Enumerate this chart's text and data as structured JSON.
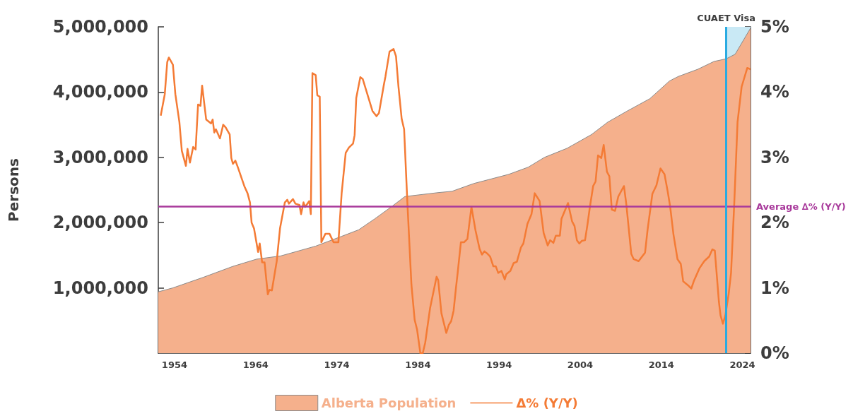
{
  "chart_data": {
    "type": "line",
    "ylabel": "Persons",
    "xlim": [
      1952,
      2025
    ],
    "xticks": [
      1954,
      1964,
      1974,
      1984,
      1994,
      2004,
      2014,
      2024
    ],
    "ylim": [
      0,
      5000000
    ],
    "yticks": [
      {
        "value": 1000000,
        "label": "1,000,000"
      },
      {
        "value": 2000000,
        "label": "2,000,000"
      },
      {
        "value": 3000000,
        "label": "3,000,000"
      },
      {
        "value": 4000000,
        "label": "4,000,000"
      },
      {
        "value": 5000000,
        "label": "5,000,000"
      }
    ],
    "y2lim": [
      0,
      5
    ],
    "y2ticks": [
      {
        "value": 0,
        "label": "0%"
      },
      {
        "value": 1,
        "label": "1%"
      },
      {
        "value": 2,
        "label": "2%"
      },
      {
        "value": 3,
        "label": "3%"
      },
      {
        "value": 4,
        "label": "4%"
      },
      {
        "value": 5,
        "label": "5%"
      }
    ],
    "grid": false,
    "legend": "bottom",
    "series": [
      {
        "name": "Alberta Population",
        "type": "area",
        "color": "#f5b08c",
        "x": [
          1952.0,
          1953.8,
          1957.5,
          1961.2,
          1964.1,
          1967.1,
          1971.4,
          1974.6,
          1976.7,
          1978.7,
          1980.7,
          1982.4,
          1986.5,
          1988.2,
          1990.9,
          1995.2,
          1997.6,
          1999.6,
          2002.4,
          2005.4,
          2007.4,
          2009.8,
          2012.6,
          2015.0,
          2016.1,
          2018.5,
          2020.5,
          2022.0,
          2023.1,
          2025.0
        ],
        "values": [
          940000,
          1000000,
          1160000,
          1330000,
          1440000,
          1490000,
          1640000,
          1790000,
          1890000,
          2060000,
          2240000,
          2400000,
          2460000,
          2480000,
          2600000,
          2740000,
          2850000,
          3000000,
          3140000,
          3350000,
          3540000,
          3710000,
          3900000,
          4170000,
          4240000,
          4350000,
          4470000,
          4510000,
          4580000,
          4980000
        ]
      },
      {
        "name": "Δ% (Y/Y)",
        "color": "#f47b35",
        "axis": "y2",
        "x": [
          1952.3,
          1952.8,
          1953.1,
          1953.3,
          1953.8,
          1954.1,
          1954.6,
          1954.9,
          1955.4,
          1955.6,
          1955.9,
          1956.3,
          1956.6,
          1956.9,
          1957.2,
          1957.4,
          1957.9,
          1958.5,
          1958.7,
          1958.9,
          1959.1,
          1959.6,
          1960.0,
          1960.3,
          1960.8,
          1961.0,
          1961.2,
          1961.5,
          1961.8,
          1962.3,
          1962.6,
          1963.0,
          1963.3,
          1963.5,
          1963.8,
          1964.3,
          1964.5,
          1964.8,
          1965.1,
          1965.5,
          1965.7,
          1966.0,
          1966.6,
          1967.0,
          1967.6,
          1967.9,
          1968.1,
          1968.6,
          1968.9,
          1969.4,
          1969.6,
          1969.9,
          1970.1,
          1970.6,
          1970.8,
          1971.0,
          1971.4,
          1971.6,
          1971.9,
          1972.1,
          1972.6,
          1973.1,
          1973.6,
          1974.2,
          1974.6,
          1975.1,
          1975.5,
          1976.0,
          1976.2,
          1976.4,
          1976.9,
          1977.2,
          1978.4,
          1978.9,
          1979.2,
          1979.8,
          1980.0,
          1980.5,
          1981.0,
          1981.3,
          1981.6,
          1982.0,
          1982.3,
          1982.7,
          1983.2,
          1983.6,
          1983.9,
          1984.3,
          1984.6,
          1984.9,
          1985.5,
          1986.3,
          1986.5,
          1986.9,
          1987.5,
          1987.8,
          1988.1,
          1988.4,
          1988.7,
          1988.9,
          1989.3,
          1989.7,
          1990.1,
          1990.6,
          1991.1,
          1991.6,
          1991.9,
          1992.2,
          1992.6,
          1992.9,
          1993.3,
          1993.6,
          1993.9,
          1994.3,
          1994.7,
          1994.9,
          1995.4,
          1995.8,
          1996.2,
          1996.7,
          1997.0,
          1997.5,
          1998.0,
          1998.4,
          1999.0,
          1999.5,
          2000.0,
          2000.3,
          2000.7,
          2001.0,
          2001.5,
          2001.7,
          2002.5,
          2003.0,
          2003.3,
          2003.6,
          2003.9,
          2004.2,
          2004.6,
          2004.9,
          2005.2,
          2005.6,
          2005.9,
          2006.2,
          2006.6,
          2006.9,
          2007.3,
          2007.6,
          2007.9,
          2008.3,
          2008.7,
          2009.4,
          2009.7,
          2010.3,
          2010.6,
          2011.2,
          2012.0,
          2012.3,
          2012.9,
          2013.4,
          2013.9,
          2014.4,
          2014.8,
          2015.1,
          2015.5,
          2016.0,
          2016.4,
          2016.7,
          2017.3,
          2017.7,
          2018.0,
          2018.7,
          2019.3,
          2019.9,
          2020.3,
          2020.6,
          2021.1,
          2021.3,
          2021.6,
          2021.9,
          2022.3,
          2022.6,
          2023.0,
          2023.4,
          2023.9,
          2024.6,
          2025.0
        ],
        "values": [
          3.64,
          3.97,
          4.46,
          4.53,
          4.42,
          3.97,
          3.54,
          3.1,
          2.87,
          3.13,
          2.92,
          3.16,
          3.12,
          3.81,
          3.79,
          4.1,
          3.58,
          3.52,
          3.58,
          3.38,
          3.43,
          3.29,
          3.5,
          3.46,
          3.35,
          2.99,
          2.9,
          2.95,
          2.85,
          2.67,
          2.56,
          2.45,
          2.31,
          2.0,
          1.91,
          1.55,
          1.68,
          1.39,
          1.39,
          0.9,
          0.97,
          0.96,
          1.41,
          1.91,
          2.31,
          2.35,
          2.29,
          2.36,
          2.29,
          2.27,
          2.13,
          2.31,
          2.24,
          2.33,
          2.13,
          4.29,
          4.26,
          3.95,
          3.93,
          1.7,
          1.83,
          1.83,
          1.7,
          1.7,
          2.45,
          3.07,
          3.15,
          3.21,
          3.34,
          3.91,
          4.23,
          4.2,
          3.71,
          3.63,
          3.68,
          4.11,
          4.24,
          4.62,
          4.66,
          4.55,
          4.09,
          3.59,
          3.43,
          2.31,
          1.05,
          0.51,
          0.36,
          0.0,
          0.0,
          0.16,
          0.69,
          1.17,
          1.12,
          0.61,
          0.31,
          0.43,
          0.49,
          0.65,
          1.01,
          1.23,
          1.7,
          1.7,
          1.75,
          2.24,
          1.88,
          1.6,
          1.51,
          1.56,
          1.52,
          1.48,
          1.33,
          1.33,
          1.23,
          1.26,
          1.13,
          1.21,
          1.26,
          1.38,
          1.4,
          1.62,
          1.68,
          1.98,
          2.13,
          2.45,
          2.33,
          1.84,
          1.65,
          1.73,
          1.69,
          1.8,
          1.8,
          2.06,
          2.3,
          2.02,
          1.95,
          1.73,
          1.68,
          1.72,
          1.73,
          1.97,
          2.24,
          2.56,
          2.63,
          3.03,
          2.99,
          3.19,
          2.78,
          2.71,
          2.2,
          2.18,
          2.4,
          2.56,
          2.27,
          1.52,
          1.44,
          1.41,
          1.54,
          1.88,
          2.44,
          2.57,
          2.83,
          2.74,
          2.47,
          2.24,
          1.82,
          1.44,
          1.37,
          1.1,
          1.04,
          0.99,
          1.1,
          1.3,
          1.41,
          1.48,
          1.59,
          1.57,
          0.79,
          0.58,
          0.45,
          0.58,
          0.9,
          1.23,
          2.31,
          3.54,
          4.08,
          4.37,
          4.35
        ]
      }
    ],
    "ref_lines": [
      {
        "axis": "y2",
        "value": 2.25,
        "label": "Average ∆% (Y/Y)",
        "color": "#a8399b"
      },
      {
        "axis": "x",
        "value": 2022,
        "label": "CUAET Visa",
        "color": "#29abe2"
      }
    ],
    "bands": [
      {
        "axis": "x",
        "from": 2022,
        "to": 2025,
        "color": "#c9e9f5"
      }
    ]
  }
}
